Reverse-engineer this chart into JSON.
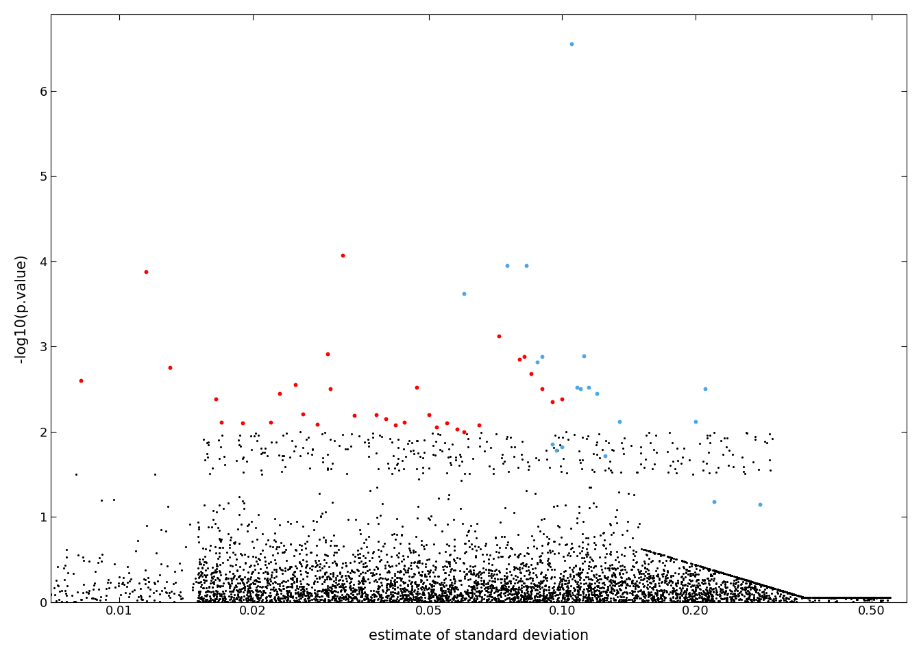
{
  "title": "",
  "xlabel": "estimate of standard deviation",
  "ylabel": "-log10(p.value)",
  "ylim": [
    0,
    6.9
  ],
  "yticks": [
    0,
    1,
    2,
    3,
    4,
    5,
    6
  ],
  "xticks": [
    0.01,
    0.02,
    0.05,
    0.1,
    0.2,
    0.5
  ],
  "background_color": "#ffffff",
  "point_size_black": 5,
  "point_size_colored": 18,
  "red_points": [
    [
      0.0082,
      2.6
    ],
    [
      0.0115,
      3.88
    ],
    [
      0.013,
      2.75
    ],
    [
      0.0165,
      2.38
    ],
    [
      0.017,
      2.11
    ],
    [
      0.019,
      2.1
    ],
    [
      0.022,
      2.11
    ],
    [
      0.023,
      2.45
    ],
    [
      0.025,
      2.55
    ],
    [
      0.026,
      2.21
    ],
    [
      0.028,
      2.09
    ],
    [
      0.0295,
      2.91
    ],
    [
      0.03,
      2.5
    ],
    [
      0.032,
      4.07
    ],
    [
      0.034,
      2.19
    ],
    [
      0.038,
      2.2
    ],
    [
      0.04,
      2.15
    ],
    [
      0.042,
      2.08
    ],
    [
      0.044,
      2.11
    ],
    [
      0.047,
      2.52
    ],
    [
      0.05,
      2.2
    ],
    [
      0.052,
      2.05
    ],
    [
      0.055,
      2.1
    ],
    [
      0.058,
      2.03
    ],
    [
      0.06,
      2.0
    ],
    [
      0.065,
      2.08
    ],
    [
      0.072,
      3.12
    ],
    [
      0.08,
      2.85
    ],
    [
      0.082,
      2.88
    ],
    [
      0.085,
      2.68
    ],
    [
      0.09,
      2.5
    ],
    [
      0.095,
      2.35
    ],
    [
      0.1,
      2.38
    ]
  ],
  "blue_points": [
    [
      0.105,
      6.55
    ],
    [
      0.06,
      3.62
    ],
    [
      0.075,
      3.95
    ],
    [
      0.083,
      3.95
    ],
    [
      0.088,
      2.82
    ],
    [
      0.09,
      2.88
    ],
    [
      0.095,
      1.85
    ],
    [
      0.097,
      1.78
    ],
    [
      0.1,
      1.82
    ],
    [
      0.108,
      2.52
    ],
    [
      0.11,
      2.5
    ],
    [
      0.112,
      2.89
    ],
    [
      0.115,
      2.52
    ],
    [
      0.12,
      2.45
    ],
    [
      0.125,
      1.72
    ],
    [
      0.135,
      2.12
    ],
    [
      0.2,
      2.12
    ],
    [
      0.21,
      2.5
    ],
    [
      0.22,
      1.18
    ],
    [
      0.28,
      1.15
    ]
  ]
}
